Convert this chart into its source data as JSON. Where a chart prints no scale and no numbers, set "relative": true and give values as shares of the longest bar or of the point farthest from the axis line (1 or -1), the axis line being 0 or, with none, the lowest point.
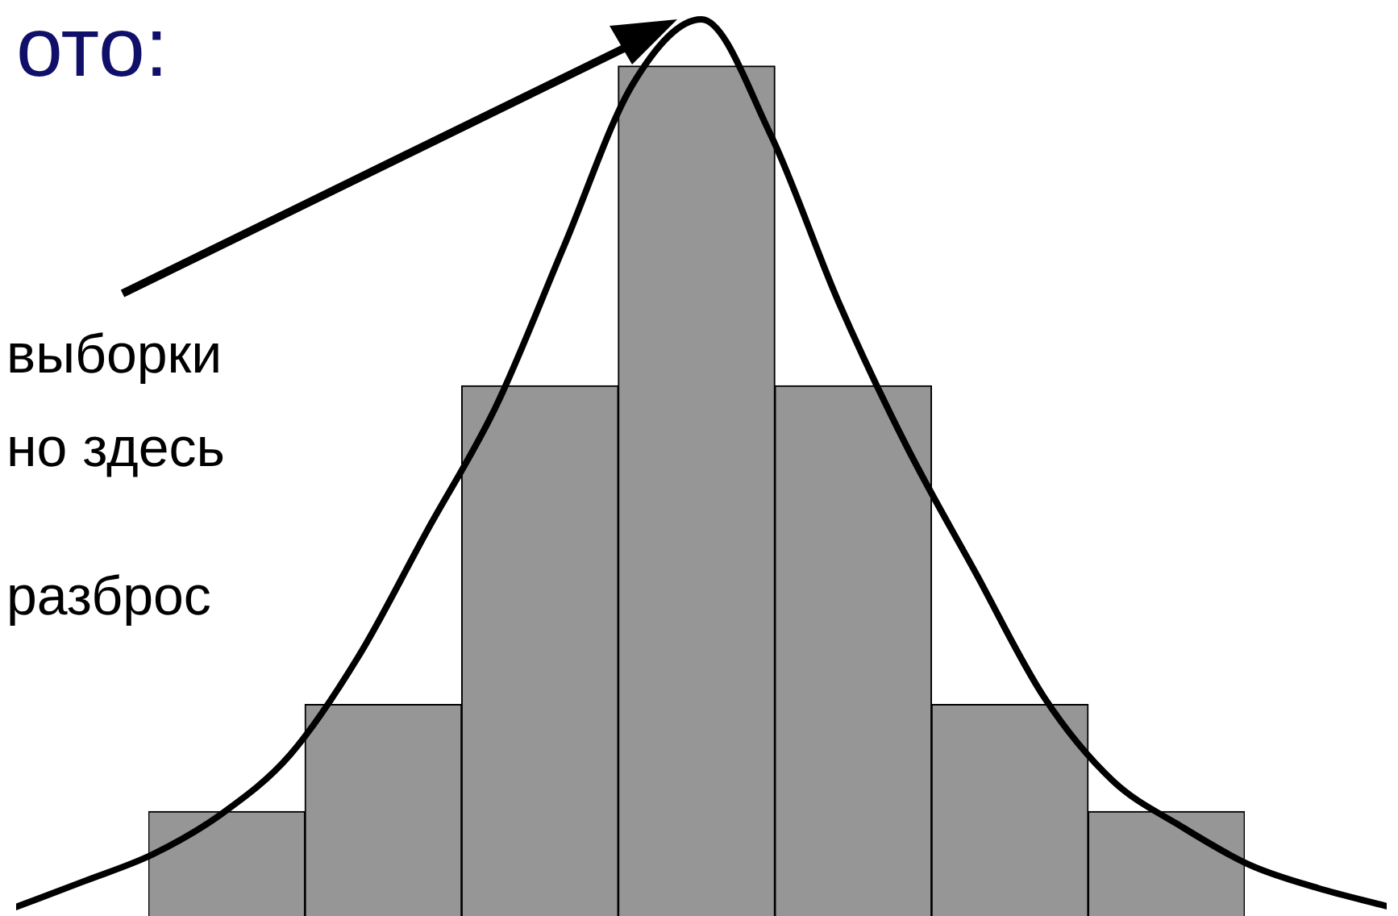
{
  "chart_data": [
    {
      "type": "bar",
      "relative": true,
      "annotations": [
        "выборки",
        "но здесь",
        "разброс"
      ],
      "categories": [
        null,
        null,
        null,
        null,
        null,
        null,
        null
      ],
      "color": "#969696",
      "values": [
        0.123,
        0.249,
        0.624,
        1,
        0.624,
        0.249,
        0.123
      ]
    },
    {
      "type": "line",
      "title": "ото:",
      "relative": true,
      "marker": "none",
      "line_style": "solid",
      "color": "#000000",
      "categories": [
        null,
        null,
        null,
        null,
        null,
        null,
        null,
        null,
        null,
        null,
        null,
        null,
        null,
        null,
        null,
        null,
        null,
        null,
        null,
        null,
        null
      ],
      "values": [
        0.01,
        0.039,
        0.069,
        0.114,
        0.18,
        0.29,
        0.43,
        0.568,
        0.748,
        0.928,
        1,
        0.873,
        0.685,
        0.523,
        0.383,
        0.244,
        0.151,
        0.1,
        0.057,
        0.031,
        0.011
      ]
    }
  ]
}
